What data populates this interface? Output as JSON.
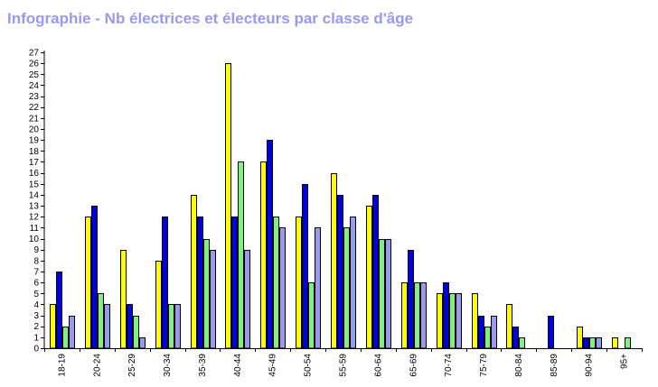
{
  "chart_data": {
    "type": "bar",
    "title": "Infographie - Nb électrices et électeurs par classe d'âge",
    "xlabel": "",
    "ylabel": "",
    "ylim": [
      0,
      27
    ],
    "yticks": [
      0,
      1,
      2,
      3,
      4,
      5,
      6,
      7,
      8,
      9,
      10,
      11,
      12,
      13,
      14,
      15,
      16,
      17,
      18,
      19,
      20,
      21,
      22,
      23,
      24,
      25,
      26,
      27
    ],
    "grid": false,
    "legend": "none",
    "categories": [
      "18-19",
      "20-24",
      "25-29",
      "30-34",
      "35-39",
      "40-44",
      "45-49",
      "50-54",
      "55-59",
      "60-64",
      "65-69",
      "70-74",
      "75-79",
      "80-84",
      "85-89",
      "90-94",
      "95+"
    ],
    "series": [
      {
        "color": "#ffff00",
        "values": [
          4,
          12,
          9,
          8,
          14,
          26,
          17,
          12,
          16,
          13,
          6,
          5,
          5,
          4,
          0,
          2,
          1
        ]
      },
      {
        "color": "#0000dd",
        "values": [
          7,
          13,
          4,
          12,
          12,
          12,
          19,
          15,
          14,
          14,
          9,
          6,
          3,
          2,
          3,
          1,
          0
        ]
      },
      {
        "color": "#80f080",
        "values": [
          2,
          5,
          3,
          4,
          10,
          17,
          12,
          6,
          11,
          10,
          6,
          5,
          2,
          1,
          0,
          1,
          1
        ]
      },
      {
        "color": "#9999ee",
        "values": [
          3,
          4,
          1,
          4,
          9,
          9,
          11,
          11,
          12,
          10,
          6,
          5,
          3,
          0,
          0,
          1,
          0
        ]
      }
    ]
  }
}
